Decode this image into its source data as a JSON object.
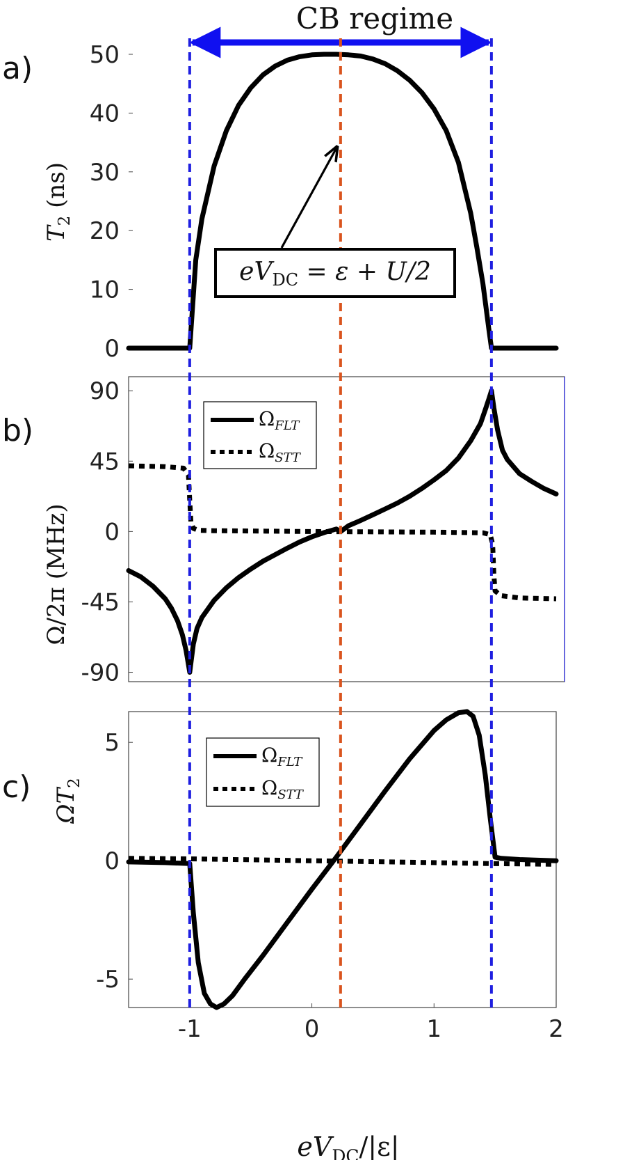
{
  "figure_title": "CB regime",
  "colors": {
    "blue": "#1f1fe0",
    "orange": "#d9541e",
    "black": "#000000",
    "axis": "#444444",
    "arrow_blue": "#1010f0"
  },
  "x_axis": {
    "label_main": "eV",
    "label_sub": "DC",
    "label_tail": "/|ε|",
    "range": [
      -1.5,
      2
    ],
    "ticks": [
      -1,
      0,
      1,
      2
    ],
    "tick_labels": [
      "-1",
      "0",
      "1",
      "2"
    ]
  },
  "markers": {
    "left_x": -1,
    "right_x": 1.47,
    "center_x": 0.235
  },
  "chart_data": [
    {
      "id": "a",
      "panel_label": "a)",
      "type": "line",
      "ylabel_main": "T",
      "ylabel_sub": "2",
      "ylabel_tail": " (ns)",
      "ylim": [
        0,
        50
      ],
      "yticks": [
        0,
        10,
        20,
        30,
        40,
        50
      ],
      "ytick_labels": [
        "0",
        "10",
        "20",
        "30",
        "40",
        "50"
      ],
      "annotation": {
        "main": "eV",
        "sub": "DC",
        "tail": " = ε + U/2",
        "x": 0.2,
        "y": 34
      },
      "series": [
        {
          "name": "T2",
          "style": "solid",
          "x": [
            -1.5,
            -1.0,
            -0.95,
            -0.9,
            -0.8,
            -0.7,
            -0.6,
            -0.5,
            -0.4,
            -0.3,
            -0.2,
            -0.1,
            0.0,
            0.1,
            0.2,
            0.3,
            0.4,
            0.5,
            0.6,
            0.7,
            0.8,
            0.9,
            1.0,
            1.1,
            1.2,
            1.3,
            1.35,
            1.4,
            1.45,
            1.47,
            2.0
          ],
          "y": [
            0,
            0,
            15,
            22,
            31,
            37,
            41.3,
            44.3,
            46.5,
            48,
            49,
            49.6,
            49.9,
            50,
            50,
            49.9,
            49.7,
            49.2,
            48.4,
            47.2,
            45.6,
            43.5,
            40.7,
            37,
            31.6,
            23,
            17.2,
            11,
            3,
            0,
            0
          ]
        }
      ]
    },
    {
      "id": "b",
      "panel_label": "b)",
      "type": "line",
      "ylabel_main": "Ω/2π",
      "ylabel_tail": " (MHz)",
      "ylim": [
        -96,
        99
      ],
      "yticks": [
        -90,
        -45,
        0,
        45,
        90
      ],
      "ytick_labels": [
        "-90",
        "-45",
        "0",
        "45",
        "90"
      ],
      "legend": [
        {
          "label_main": "Ω",
          "label_sub": "FLT",
          "style": "solid"
        },
        {
          "label_main": "Ω",
          "label_sub": "STT",
          "style": "dotted"
        }
      ],
      "series": [
        {
          "name": "Ω_FLT",
          "style": "solid",
          "x": [
            -1.5,
            -1.4,
            -1.3,
            -1.2,
            -1.15,
            -1.1,
            -1.06,
            -1.03,
            -1.0,
            -0.97,
            -0.94,
            -0.9,
            -0.8,
            -0.7,
            -0.6,
            -0.5,
            -0.4,
            -0.3,
            -0.2,
            -0.1,
            0.0,
            0.1,
            0.2,
            0.235,
            0.3,
            0.4,
            0.5,
            0.6,
            0.7,
            0.8,
            0.9,
            1.0,
            1.1,
            1.2,
            1.3,
            1.38,
            1.42,
            1.45,
            1.47,
            1.49,
            1.52,
            1.56,
            1.6,
            1.7,
            1.8,
            1.9,
            2.0
          ],
          "y": [
            -25,
            -29,
            -35,
            -43,
            -49,
            -57,
            -66,
            -76,
            -90,
            -72,
            -62,
            -55,
            -44,
            -36,
            -29.5,
            -24,
            -19,
            -14.8,
            -10.6,
            -6.7,
            -3.4,
            -0.7,
            1.6,
            0,
            3.7,
            7.1,
            10.7,
            14.4,
            18.2,
            22.5,
            27.5,
            33,
            39,
            47,
            58,
            69,
            78,
            85,
            90,
            79,
            65,
            52,
            46,
            37,
            32,
            27.5,
            24
          ]
        },
        {
          "name": "Ω_STT",
          "style": "dotted",
          "x": [
            -1.5,
            -1.2,
            -1.05,
            -1.01,
            -1.0,
            -0.99,
            -0.97,
            -0.93,
            -0.8,
            0.0,
            1.0,
            1.4,
            1.46,
            1.48,
            1.49,
            1.5,
            1.55,
            1.7,
            2.0
          ],
          "y": [
            42,
            41.5,
            40.5,
            36,
            20,
            6,
            2,
            0.8,
            0.5,
            0,
            -0.4,
            -0.8,
            -2,
            -8,
            -28,
            -38,
            -41,
            -42.5,
            -43
          ]
        }
      ]
    },
    {
      "id": "c",
      "panel_label": "c)",
      "type": "line",
      "ylabel_main": "ΩT",
      "ylabel_sub": "2",
      "ylim": [
        -6.2,
        6.3
      ],
      "yticks": [
        -5,
        0,
        5
      ],
      "ytick_labels": [
        "-5",
        "0",
        "5"
      ],
      "legend": [
        {
          "label_main": "Ω",
          "label_sub": "FLT",
          "style": "solid"
        },
        {
          "label_main": "Ω",
          "label_sub": "STT",
          "style": "dotted"
        }
      ],
      "series": [
        {
          "name": "ΩT2_FLT",
          "style": "solid",
          "x": [
            -1.5,
            -1.2,
            -1.0,
            -0.97,
            -0.93,
            -0.88,
            -0.83,
            -0.78,
            -0.72,
            -0.65,
            -0.55,
            -0.4,
            -0.2,
            0.0,
            0.2,
            0.4,
            0.6,
            0.8,
            1.0,
            1.1,
            1.2,
            1.27,
            1.32,
            1.37,
            1.42,
            1.46,
            1.5,
            1.55,
            1.7,
            2.0
          ],
          "y": [
            -0.05,
            -0.08,
            -0.12,
            -2.2,
            -4.3,
            -5.6,
            -6.05,
            -6.2,
            -6.05,
            -5.7,
            -5.0,
            -4.0,
            -2.6,
            -1.2,
            0.15,
            1.55,
            2.95,
            4.3,
            5.5,
            5.95,
            6.25,
            6.3,
            6.1,
            5.3,
            3.6,
            1.8,
            0.15,
            0.1,
            0.05,
            0.0
          ]
        },
        {
          "name": "ΩT2_STT",
          "style": "dotted",
          "x": [
            -1.5,
            -1.0,
            0.0,
            1.0,
            1.47,
            2.0
          ],
          "y": [
            0.1,
            0.08,
            0.0,
            -0.08,
            -0.12,
            -0.15
          ]
        }
      ]
    }
  ]
}
